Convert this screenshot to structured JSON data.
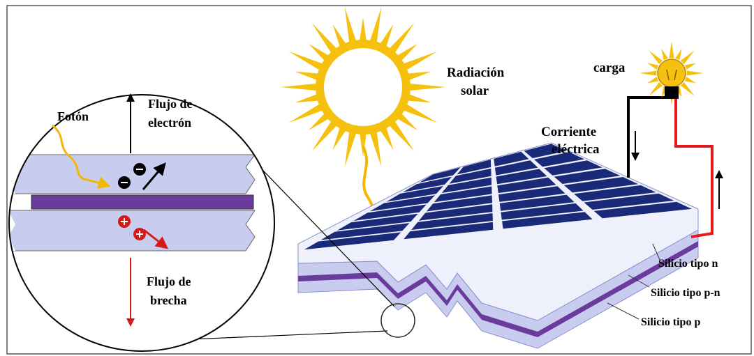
{
  "labels": {
    "radiation_line1": "Radiación",
    "radiation_line2": "solar",
    "load": "carga",
    "current_line1": "Corriente",
    "current_line2": "eléctrica",
    "silicon_n": "Silicio tipo n",
    "silicon_pn": "Silicio tipo p-n",
    "silicon_p": "Silicio tipo p",
    "photon": "Fotón",
    "electron_flow_line1": "Flujo de",
    "electron_flow_line2": "electrón",
    "hole_flow_line1": "Flujo de",
    "hole_flow_line2": "brecha"
  },
  "colors": {
    "sun": "#f6c10e",
    "panel_cell": "#1b2a78",
    "layer_light": "#c8cdf0",
    "junction": "#6a3a9c",
    "wire_positive": "#e31b1b",
    "wire_negative": "#000000",
    "electron_arrow": "#000000",
    "hole_arrow": "#d61a1a",
    "photon_path": "#f2b705"
  },
  "icons": {
    "sun": "sun-icon",
    "bulb": "light-bulb-icon",
    "electron": "electron-icon",
    "hole": "hole-icon"
  }
}
